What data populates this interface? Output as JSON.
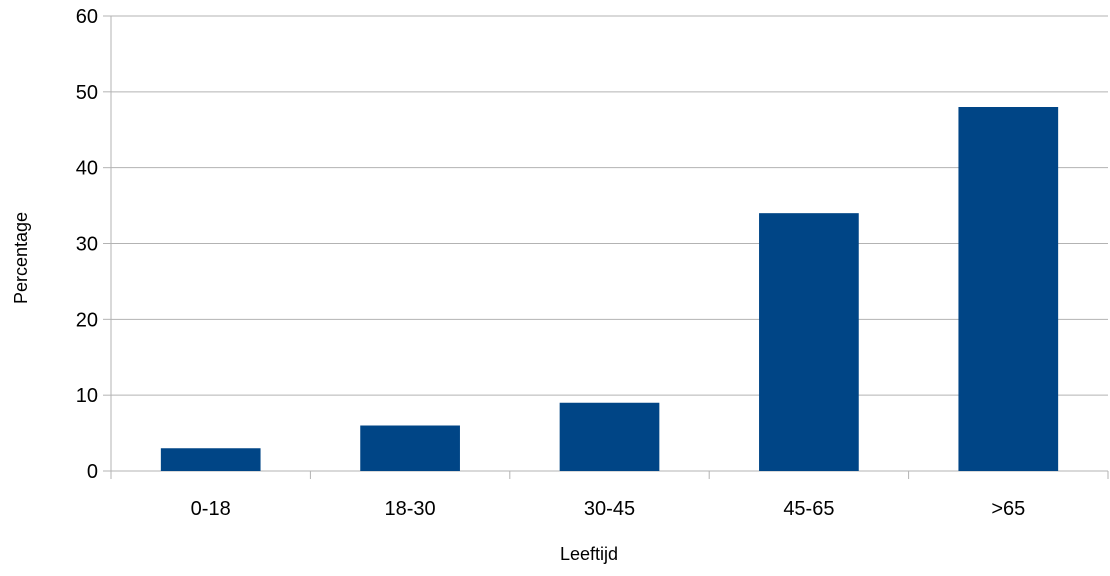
{
  "chart_data": {
    "type": "bar",
    "title": "",
    "xlabel": "Leeftijd",
    "ylabel": "Percentage",
    "categories": [
      "0-18",
      "18-30",
      "30-45",
      "45-65",
      ">65"
    ],
    "values": [
      3,
      6,
      9,
      34,
      48
    ],
    "ylim": [
      0,
      60
    ],
    "yticks": [
      0,
      10,
      20,
      30,
      40,
      50,
      60
    ],
    "grid": true,
    "legend": "none",
    "bar_color": "#004586",
    "grid_color": "#b3b3b3",
    "axis_color": "#b3b3b3"
  }
}
